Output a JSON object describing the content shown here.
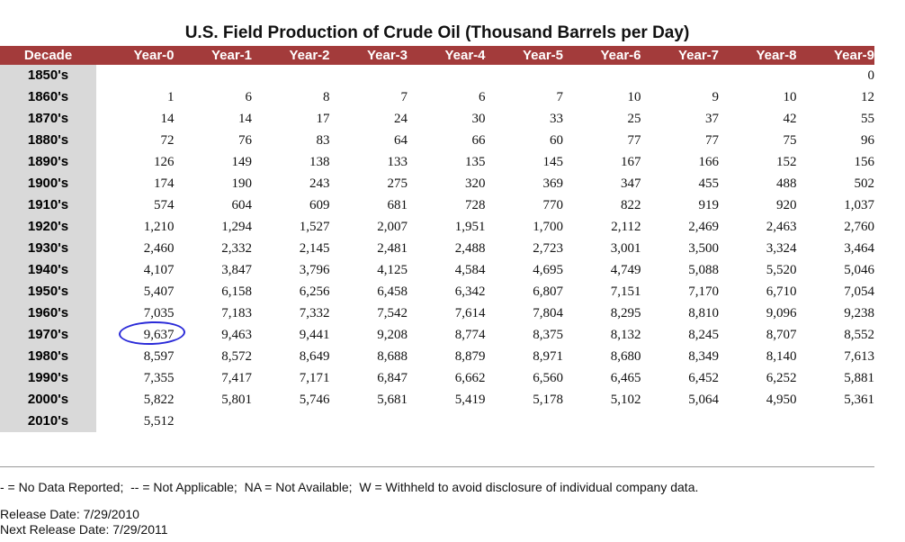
{
  "title": "U.S. Field Production of Crude Oil (Thousand Barrels per Day)",
  "headers": [
    "Decade",
    "Year-0",
    "Year-1",
    "Year-2",
    "Year-3",
    "Year-4",
    "Year-5",
    "Year-6",
    "Year-7",
    "Year-8",
    "Year-9"
  ],
  "rows": [
    {
      "decade": "1850's",
      "values": [
        "",
        "",
        "",
        "",
        "",
        "",
        "",
        "",
        "",
        "0"
      ]
    },
    {
      "decade": "1860's",
      "values": [
        "1",
        "6",
        "8",
        "7",
        "6",
        "7",
        "10",
        "9",
        "10",
        "12"
      ]
    },
    {
      "decade": "1870's",
      "values": [
        "14",
        "14",
        "17",
        "24",
        "30",
        "33",
        "25",
        "37",
        "42",
        "55"
      ]
    },
    {
      "decade": "1880's",
      "values": [
        "72",
        "76",
        "83",
        "64",
        "66",
        "60",
        "77",
        "77",
        "75",
        "96"
      ]
    },
    {
      "decade": "1890's",
      "values": [
        "126",
        "149",
        "138",
        "133",
        "135",
        "145",
        "167",
        "166",
        "152",
        "156"
      ]
    },
    {
      "decade": "1900's",
      "values": [
        "174",
        "190",
        "243",
        "275",
        "320",
        "369",
        "347",
        "455",
        "488",
        "502"
      ]
    },
    {
      "decade": "1910's",
      "values": [
        "574",
        "604",
        "609",
        "681",
        "728",
        "770",
        "822",
        "919",
        "920",
        "1,037"
      ]
    },
    {
      "decade": "1920's",
      "values": [
        "1,210",
        "1,294",
        "1,527",
        "2,007",
        "1,951",
        "1,700",
        "2,112",
        "2,469",
        "2,463",
        "2,760"
      ]
    },
    {
      "decade": "1930's",
      "values": [
        "2,460",
        "2,332",
        "2,145",
        "2,481",
        "2,488",
        "2,723",
        "3,001",
        "3,500",
        "3,324",
        "3,464"
      ]
    },
    {
      "decade": "1940's",
      "values": [
        "4,107",
        "3,847",
        "3,796",
        "4,125",
        "4,584",
        "4,695",
        "4,749",
        "5,088",
        "5,520",
        "5,046"
      ]
    },
    {
      "decade": "1950's",
      "values": [
        "5,407",
        "6,158",
        "6,256",
        "6,458",
        "6,342",
        "6,807",
        "7,151",
        "7,170",
        "6,710",
        "7,054"
      ]
    },
    {
      "decade": "1960's",
      "values": [
        "7,035",
        "7,183",
        "7,332",
        "7,542",
        "7,614",
        "7,804",
        "8,295",
        "8,810",
        "9,096",
        "9,238"
      ]
    },
    {
      "decade": "1970's",
      "values": [
        "9,637",
        "9,463",
        "9,441",
        "9,208",
        "8,774",
        "8,375",
        "8,132",
        "8,245",
        "8,707",
        "8,552"
      ]
    },
    {
      "decade": "1980's",
      "values": [
        "8,597",
        "8,572",
        "8,649",
        "8,688",
        "8,879",
        "8,971",
        "8,680",
        "8,349",
        "8,140",
        "7,613"
      ]
    },
    {
      "decade": "1990's",
      "values": [
        "7,355",
        "7,417",
        "7,171",
        "6,847",
        "6,662",
        "6,560",
        "6,465",
        "6,452",
        "6,252",
        "5,881"
      ]
    },
    {
      "decade": "2000's",
      "values": [
        "5,822",
        "5,801",
        "5,746",
        "5,681",
        "5,419",
        "5,178",
        "5,102",
        "5,064",
        "4,950",
        "5,361"
      ]
    },
    {
      "decade": "2010's",
      "values": [
        "5,512",
        "",
        "",
        "",
        "",
        "",
        "",
        "",
        "",
        ""
      ]
    }
  ],
  "footnote": "- = No Data Reported;  -- = Not Applicable;  NA = Not Available;  W = Withheld to avoid disclosure of individual company data.",
  "release_date": "Release Date: 7/29/2010",
  "next_release_date": "Next Release Date: 7/29/2011",
  "colors": {
    "header_bg": "#a33b3b",
    "decade_bg": "#d9d9d9",
    "highlight_circle": "#2a2ad8"
  }
}
